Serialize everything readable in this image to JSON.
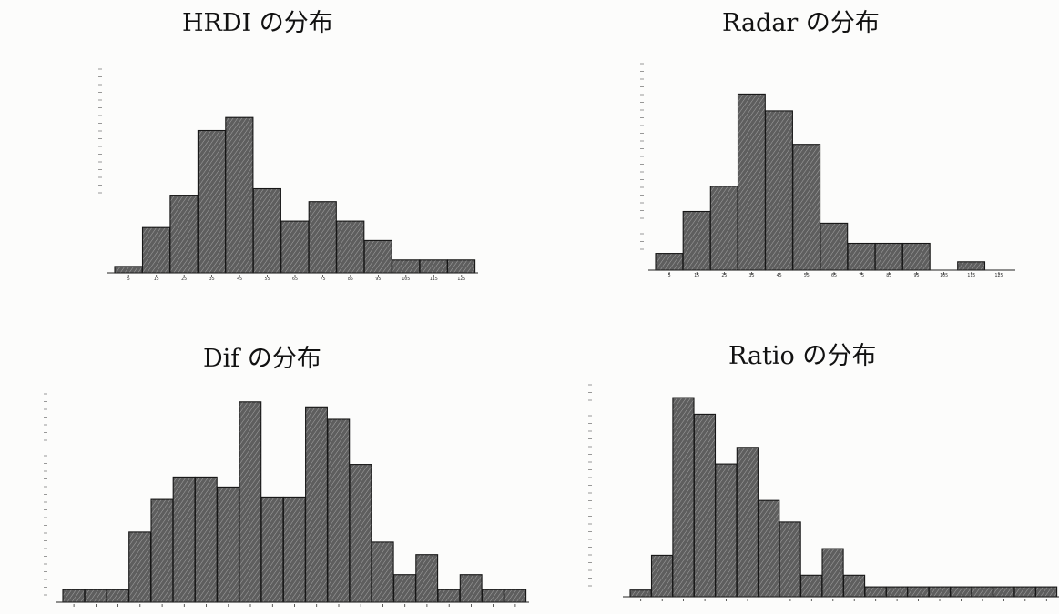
{
  "titles": {
    "hrdi": "HRDI の分布",
    "radar": "Radar の分布",
    "dif": "Dif の分布",
    "ratio": "Ratio の分布"
  },
  "colors": {
    "bar_fill": "#5e5e5e",
    "bar_hatch": "#b8b8b8",
    "axis": "#222222",
    "background": "#fcfcfb"
  },
  "chart_data": [
    {
      "type": "bar",
      "title": "HRDI の分布",
      "categories": [
        "5",
        "15",
        "25",
        "35",
        "45",
        "55",
        "65",
        "75",
        "85",
        "95",
        "105",
        "115",
        "125"
      ],
      "values": [
        0.5,
        3.5,
        6,
        11,
        12,
        6.5,
        4,
        5.5,
        4,
        2.5,
        1,
        1,
        1
      ],
      "xlabel": "",
      "ylabel": "",
      "ylim": [
        0,
        13
      ],
      "grid": false
    },
    {
      "type": "bar",
      "title": "Radar の分布",
      "categories": [
        "5",
        "15",
        "25",
        "35",
        "45",
        "55",
        "65",
        "75",
        "85",
        "95",
        "105",
        "115",
        "125"
      ],
      "values": [
        1,
        3.5,
        5,
        10.5,
        9.5,
        7.5,
        2.8,
        1.6,
        1.6,
        1.6,
        0,
        0.5,
        0
      ],
      "xlabel": "",
      "ylabel": "",
      "ylim": [
        0,
        11.5
      ],
      "grid": false
    },
    {
      "type": "bar",
      "title": "Dif の分布",
      "categories": [
        "",
        "",
        "",
        "",
        "",
        "",
        "",
        "",
        "",
        "",
        "",
        "",
        "",
        "",
        "",
        "",
        "",
        "",
        "",
        "",
        ""
      ],
      "values": [
        0.5,
        0.5,
        0.5,
        2.8,
        4.1,
        5.0,
        5.0,
        4.6,
        8.0,
        4.2,
        4.2,
        7.8,
        7.3,
        5.5,
        2.4,
        1.1,
        1.9,
        0.5,
        1.1,
        0.5,
        0.5
      ],
      "xlabel": "",
      "ylabel": "",
      "ylim": [
        0,
        8.5
      ],
      "grid": false
    },
    {
      "type": "bar",
      "title": "Ratio の分布",
      "categories": [
        "",
        "",
        "",
        "",
        "",
        "",
        "",
        "",
        "",
        "",
        "",
        "",
        "",
        "",
        "",
        "",
        "",
        "",
        "",
        ""
      ],
      "values": [
        0.4,
        2.5,
        12.0,
        11.0,
        8.0,
        9.0,
        5.8,
        4.5,
        1.3,
        2.9,
        1.3,
        0.6,
        0.6,
        0.6,
        0.6,
        0.6,
        0.6,
        0.6,
        0.6,
        0.6
      ],
      "xlabel": "",
      "ylabel": "",
      "ylim": [
        0,
        12.5
      ],
      "grid": false
    }
  ]
}
